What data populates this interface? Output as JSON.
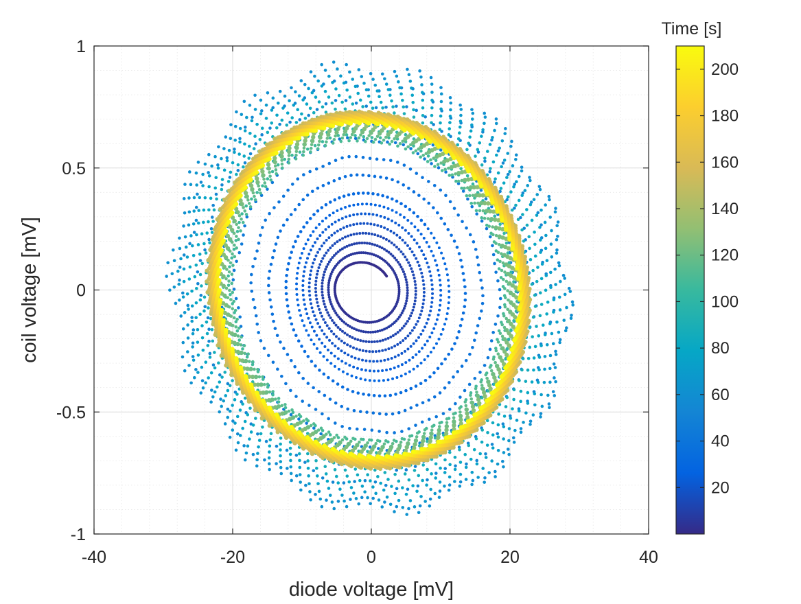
{
  "chart_data": {
    "type": "scatter",
    "title": "",
    "xlabel": "diode voltage [mV]",
    "ylabel": "coil voltage [mV]",
    "xlim": [
      -40,
      40
    ],
    "ylim": [
      -1,
      1
    ],
    "x_ticks": [
      -40,
      -20,
      0,
      20,
      40
    ],
    "y_ticks": [
      -1,
      -0.5,
      0,
      0.5,
      1
    ],
    "x_tick_labels": [
      "-40",
      "-20",
      "0",
      "20",
      "40"
    ],
    "y_tick_labels": [
      "-1",
      "-0.5",
      "0",
      "0.5",
      "1"
    ],
    "grid": true,
    "minor_grid": true,
    "colorbar": {
      "title": "Time [s]",
      "range": [
        0,
        210
      ],
      "ticks": [
        20,
        40,
        60,
        80,
        100,
        120,
        140,
        160,
        180,
        200
      ],
      "tick_labels": [
        "20",
        "40",
        "60",
        "80",
        "100",
        "120",
        "140",
        "160",
        "180",
        "200"
      ],
      "colormap": "parula",
      "colormap_stops": [
        "#352a87",
        "#0363e1",
        "#1485d4",
        "#06a7c6",
        "#38b99e",
        "#92bf73",
        "#d9ba56",
        "#fcce2e",
        "#f9fb0e"
      ]
    },
    "series": [
      {
        "description_from_figure": "phase-space trajectory colored by time",
        "points_sampled": [
          {
            "t": 2,
            "x": -0.5,
            "y": 0.04
          },
          {
            "t": 5,
            "x": 4.5,
            "y": 0.0
          },
          {
            "t": 5,
            "x": 0.0,
            "y": -0.12
          },
          {
            "t": 5,
            "x": -5.0,
            "y": 0.02
          },
          {
            "t": 5,
            "x": -1.0,
            "y": 0.12
          },
          {
            "t": 12,
            "x": 6.5,
            "y": 0.0
          },
          {
            "t": 12,
            "x": 0.0,
            "y": -0.18
          },
          {
            "t": 12,
            "x": -6.0,
            "y": 0.0
          },
          {
            "t": 12,
            "x": -0.5,
            "y": 0.22
          },
          {
            "t": 25,
            "x": 11.0,
            "y": -0.05
          },
          {
            "t": 25,
            "x": 0.0,
            "y": -0.35
          },
          {
            "t": 25,
            "x": -11.0,
            "y": 0.05
          },
          {
            "t": 25,
            "x": 0.0,
            "y": 0.38
          },
          {
            "t": 45,
            "x": 30.5,
            "y": -0.15
          },
          {
            "t": 45,
            "x": 0.5,
            "y": -0.92
          },
          {
            "t": 45,
            "x": -31.0,
            "y": 0.15
          },
          {
            "t": 45,
            "x": -10.0,
            "y": 0.9
          },
          {
            "t": 90,
            "x": 20.0,
            "y": -0.1
          },
          {
            "t": 90,
            "x": 0.0,
            "y": -0.58
          },
          {
            "t": 90,
            "x": -20.0,
            "y": 0.1
          },
          {
            "t": 90,
            "x": -3.0,
            "y": 0.6
          },
          {
            "t": 130,
            "x": 25.0,
            "y": -0.05
          },
          {
            "t": 130,
            "x": 0.0,
            "y": -0.72
          },
          {
            "t": 130,
            "x": -24.0,
            "y": 0.1
          },
          {
            "t": 130,
            "x": -5.0,
            "y": 0.72
          },
          {
            "t": 200,
            "x": 23.0,
            "y": -0.05
          },
          {
            "t": 200,
            "x": 0.0,
            "y": -0.67
          },
          {
            "t": 200,
            "x": -22.0,
            "y": 0.1
          },
          {
            "t": 200,
            "x": -5.0,
            "y": 0.66
          }
        ]
      }
    ]
  }
}
